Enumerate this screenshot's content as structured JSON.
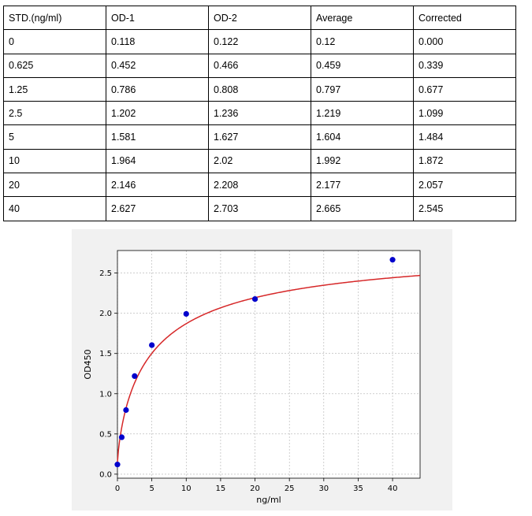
{
  "table": {
    "headers": [
      "STD.(ng/ml)",
      "OD-1",
      "OD-2",
      "Average",
      "Corrected"
    ],
    "rows": [
      [
        "0",
        "0.118",
        "0.122",
        "0.12",
        "0.000"
      ],
      [
        "0.625",
        "0.452",
        "0.466",
        "0.459",
        "0.339"
      ],
      [
        "1.25",
        "0.786",
        "0.808",
        "0.797",
        "0.677"
      ],
      [
        "2.5",
        "1.202",
        "1.236",
        "1.219",
        "1.099"
      ],
      [
        "5",
        "1.581",
        "1.627",
        "1.604",
        "1.484"
      ],
      [
        "10",
        "1.964",
        "2.02",
        "1.992",
        "1.872"
      ],
      [
        "20",
        "2.146",
        "2.208",
        "2.177",
        "2.057"
      ],
      [
        "40",
        "2.627",
        "2.703",
        "2.665",
        "2.545"
      ]
    ]
  },
  "chart_data": {
    "type": "scatter",
    "xlabel": "ng/ml",
    "ylabel": "OD450",
    "xlim": [
      0,
      44
    ],
    "ylim": [
      -0.05,
      2.78
    ],
    "xticks": [
      "0",
      "5",
      "10",
      "15",
      "20",
      "25",
      "30",
      "35",
      "40"
    ],
    "yticks": [
      "0.0",
      "0.5",
      "1.0",
      "1.5",
      "2.0",
      "2.5"
    ],
    "grid": true,
    "points": {
      "x": [
        0,
        0.625,
        1.25,
        2.5,
        5,
        10,
        20,
        40
      ],
      "y": [
        0.12,
        0.459,
        0.797,
        1.219,
        1.604,
        1.992,
        2.177,
        2.665
      ],
      "color": "#0000cc"
    },
    "fit_curve": {
      "model": "4PL",
      "a": 0.146,
      "b": 0.79,
      "c": 5.2,
      "d": 2.9,
      "color": "#d62728"
    }
  }
}
